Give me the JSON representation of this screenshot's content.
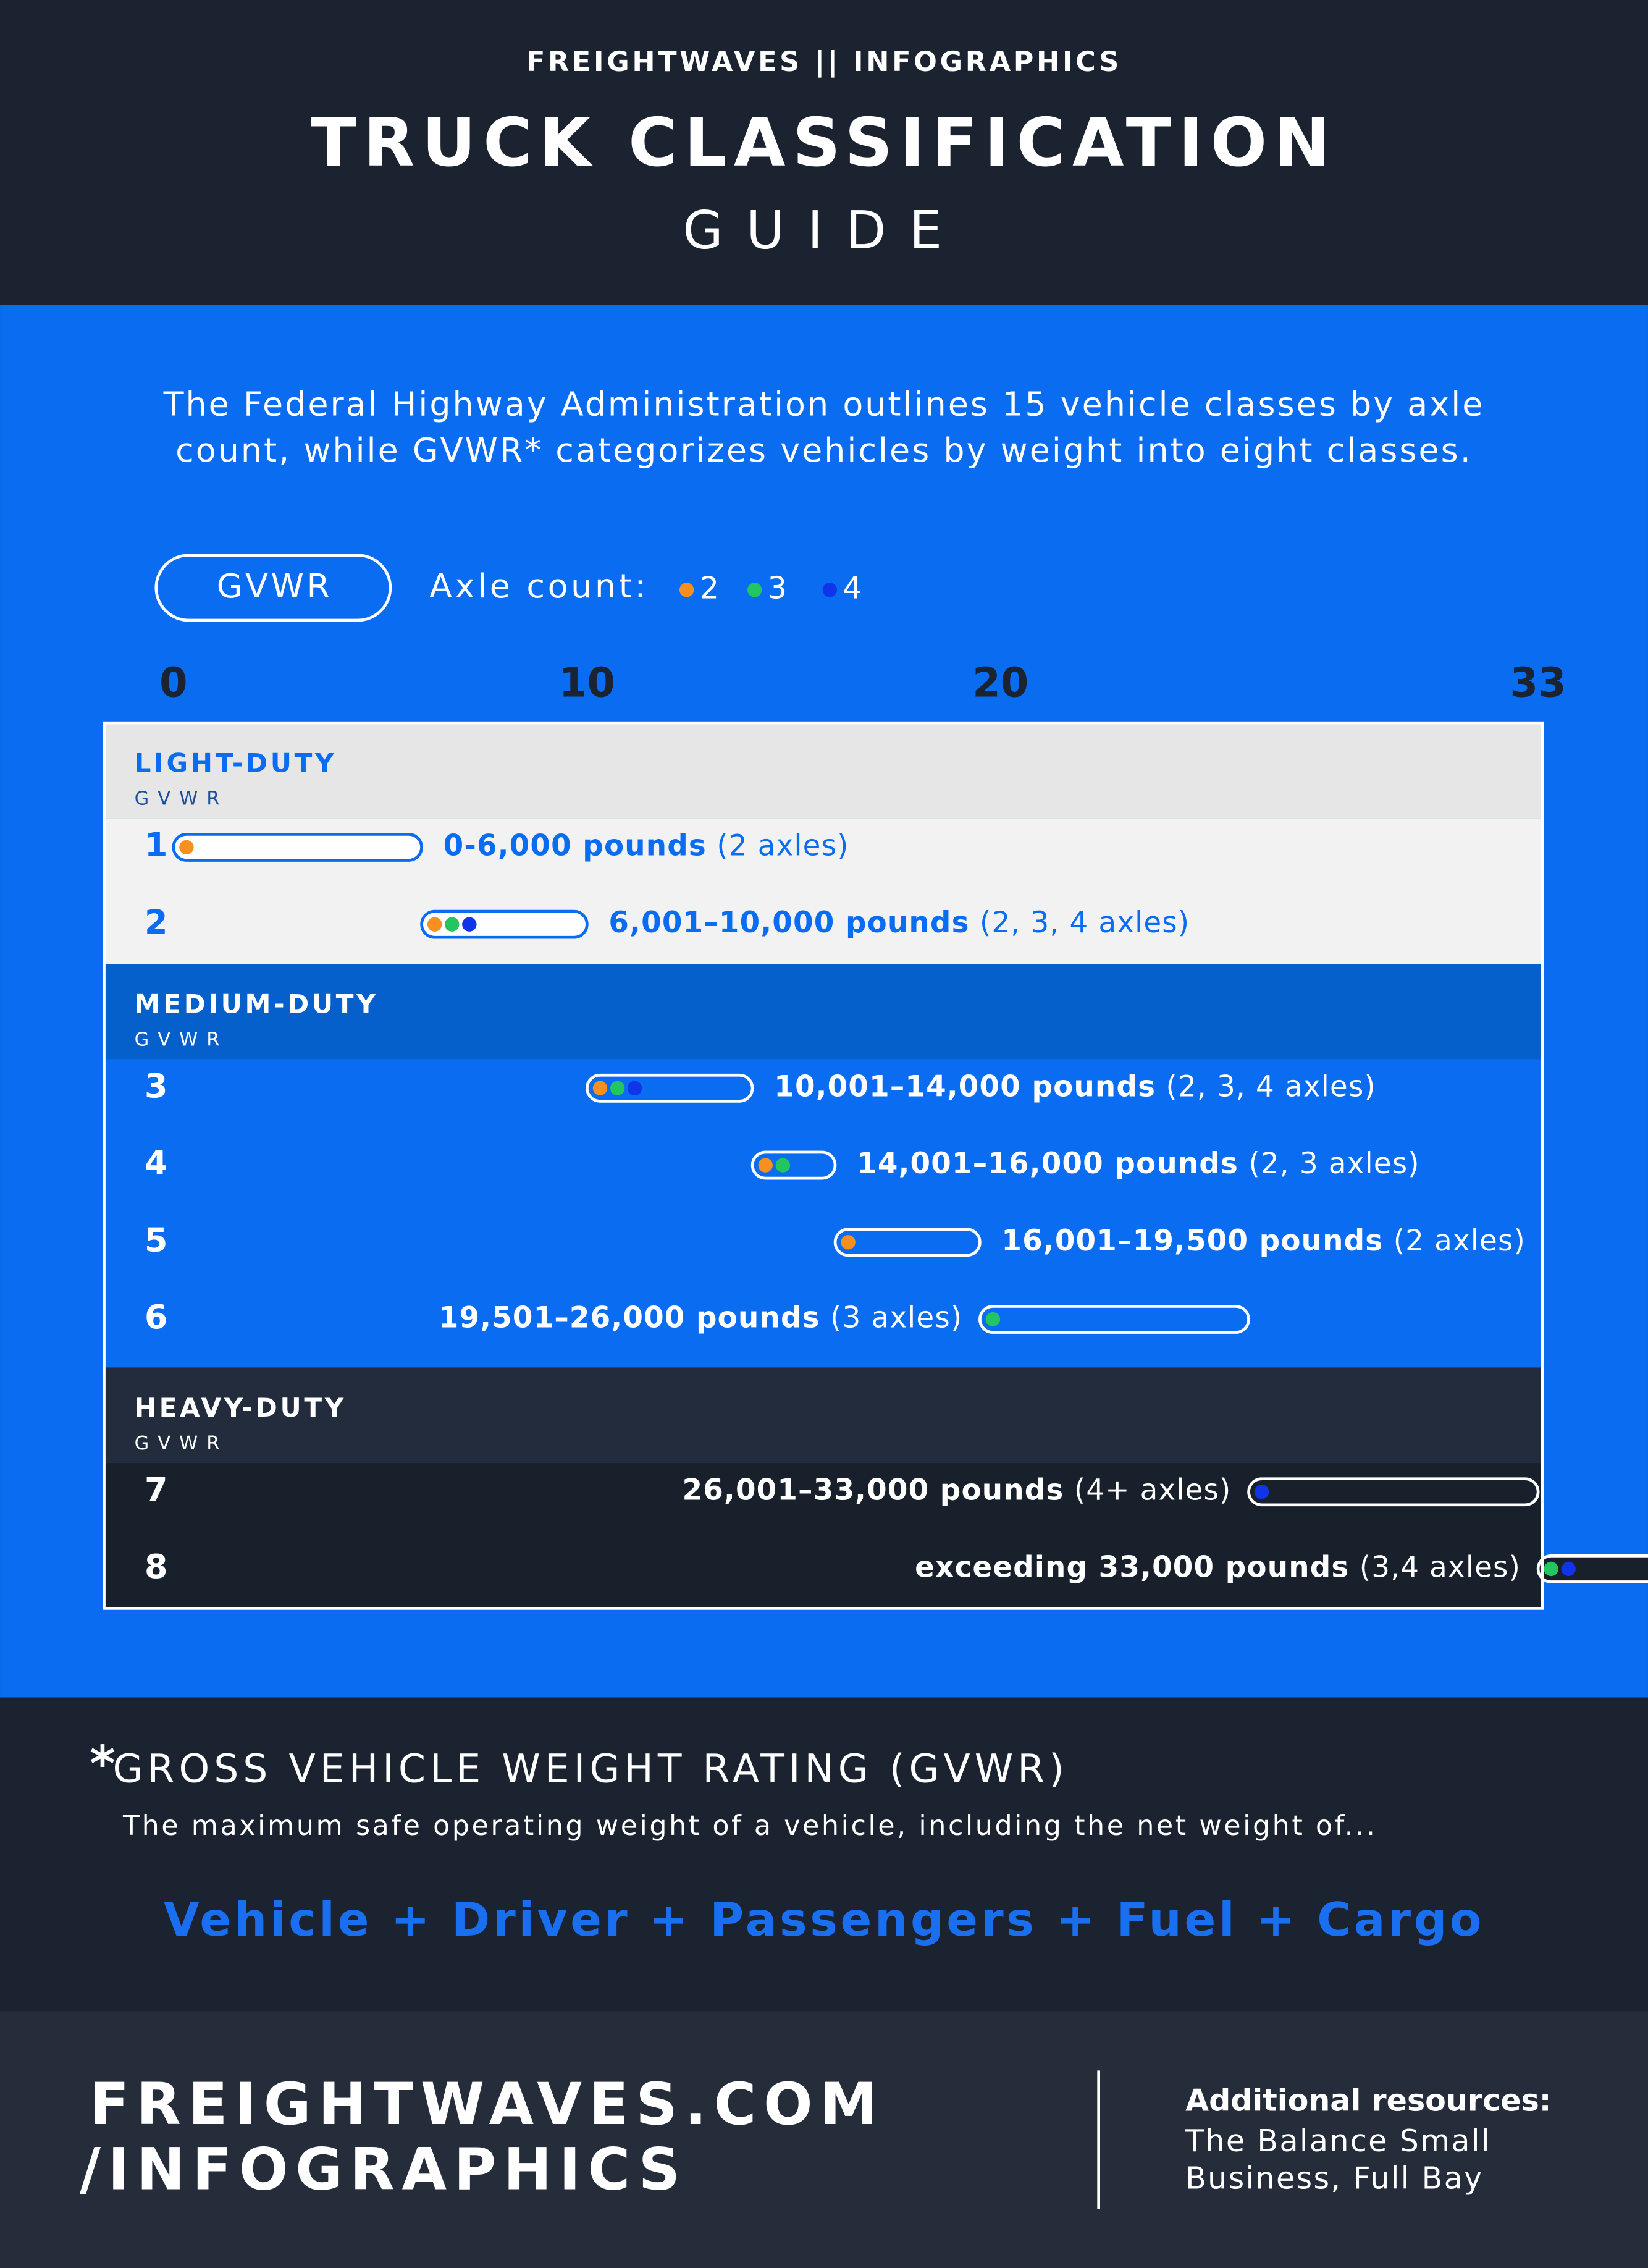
{
  "header": {
    "brand": "FREIGHTWAVES || INFOGRAPHICS",
    "title": "TRUCK CLASSIFICATION",
    "subtitle": "GUIDE"
  },
  "intro": [
    "The Federal Highway Administration outlines 15 vehicle classes by axle",
    "count, while GVWR* categorizes vehicles by weight into eight classes."
  ],
  "chart_data": {
    "type": "range-bar",
    "unit_badge": "GVWR",
    "legend": {
      "title": "Axle count:",
      "items": [
        {
          "label": "2",
          "color": "#f7901e"
        },
        {
          "label": "3",
          "color": "#22c55e"
        },
        {
          "label": "4",
          "color": "#1034e8"
        }
      ]
    },
    "xlim": [
      0,
      33
    ],
    "xticks": [
      0,
      10,
      20,
      33
    ],
    "groups": [
      {
        "name": "LIGHT-DUTY",
        "sub": "GVWR",
        "classes": [
          0,
          1
        ]
      },
      {
        "name": "MEDIUM-DUTY",
        "sub": "GVWR",
        "classes": [
          2,
          3,
          4,
          5
        ]
      },
      {
        "name": "HEAVY-DUTY",
        "sub": "GVWR",
        "classes": [
          6,
          7
        ]
      }
    ],
    "categories": [
      "1",
      "2",
      "3",
      "4",
      "5",
      "6",
      "7",
      "8"
    ],
    "start": [
      0,
      6.001,
      10.001,
      14.001,
      16.001,
      19.501,
      26.001,
      33
    ],
    "end": [
      6,
      10,
      14,
      16,
      19.5,
      26,
      33,
      null
    ],
    "value_labels": [
      "0-6,000 pounds",
      "6,001–10,000 pounds",
      "10,001–14,000 pounds",
      "14,001–16,000 pounds",
      "16,001–19,500 pounds",
      "19,501–26,000 pounds",
      "26,001–33,000 pounds",
      "exceeding 33,000 pounds"
    ],
    "axle_labels": [
      "(2 axles)",
      "(2, 3, 4 axles)",
      "(2, 3, 4 axles)",
      "(2, 3 axles)",
      "(2 axles)",
      "(3 axles)",
      "(4+ axles)",
      "(3,4 axles)"
    ],
    "axles": [
      [
        2
      ],
      [
        2,
        3,
        4
      ],
      [
        2,
        3,
        4
      ],
      [
        2,
        3
      ],
      [
        2
      ],
      [
        3
      ],
      [
        4
      ],
      [
        3,
        4
      ]
    ]
  },
  "footnote": {
    "mark": "*",
    "title": "GROSS VEHICLE WEIGHT RATING (GVWR)",
    "text": "The maximum safe operating weight of a vehicle, including the net weight of...",
    "formula": "Vehicle + Driver + Passengers + Fuel + Cargo"
  },
  "footer": {
    "site": [
      "FREIGHTWAVES.COM",
      "/INFOGRAPHICS"
    ],
    "resources_title": "Additional resources:",
    "resources": [
      "The Balance Small",
      "Business, Full Bay"
    ]
  }
}
